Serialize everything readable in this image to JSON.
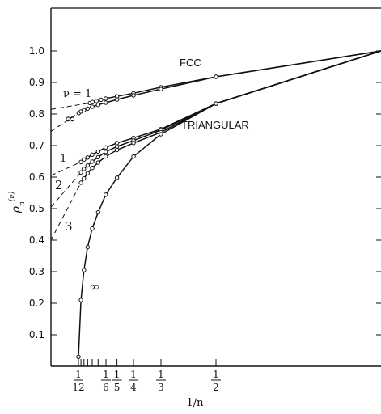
{
  "chart_data": {
    "type": "line",
    "xlabel": "1/n",
    "ylabel": "ρ_n^(ν)",
    "xlim": [
      0,
      1
    ],
    "ylim": [
      0,
      1.05
    ],
    "x_scale": "1/n (reciprocal of n)",
    "yticks": [
      "0.1",
      "0.2",
      "0.3",
      "0.4",
      "0.5",
      "0.6",
      "0.7",
      "0.8",
      "0.9",
      "1.0"
    ],
    "xtick_labels": [
      {
        "n": 12,
        "num": "1",
        "den": "12"
      },
      {
        "n": 6,
        "num": "1",
        "den": "6"
      },
      {
        "n": 5,
        "num": "1",
        "den": "5"
      },
      {
        "n": 4,
        "num": "1",
        "den": "4"
      },
      {
        "n": 3,
        "num": "1",
        "den": "3"
      },
      {
        "n": 2,
        "num": "1",
        "den": "2"
      }
    ],
    "minor_ticks_n": [
      11,
      10,
      9,
      8,
      7
    ],
    "annotations": {
      "fcc": "FCC",
      "triangular": "TRIANGULAR",
      "nu_eq_1": "ν = 1",
      "fcc_inf": "∞",
      "tri_1": "1",
      "tri_2": "2",
      "tri_3": "3",
      "tri_inf": "∞"
    },
    "series": [
      {
        "group": "FCC",
        "label": "ν = 1",
        "points": [
          [
            0.118,
            0.835
          ],
          [
            0.126,
            0.838
          ],
          [
            0.138,
            0.841
          ],
          [
            0.152,
            0.845
          ],
          [
            0.166,
            0.849
          ],
          [
            0.2,
            0.856
          ],
          [
            0.25,
            0.866
          ],
          [
            0.333,
            0.885
          ],
          [
            0.5,
            0.918
          ],
          [
            1,
            1.0
          ]
        ],
        "extrap": [
          [
            0,
            0.815
          ],
          [
            0.118,
            0.835
          ]
        ]
      },
      {
        "group": "FCC",
        "label": "∞",
        "points": [
          [
            0.084,
            0.803
          ],
          [
            0.091,
            0.808
          ],
          [
            0.1,
            0.812
          ],
          [
            0.111,
            0.817
          ],
          [
            0.125,
            0.823
          ],
          [
            0.143,
            0.829
          ],
          [
            0.166,
            0.836
          ],
          [
            0.2,
            0.846
          ],
          [
            0.25,
            0.859
          ],
          [
            0.333,
            0.879
          ],
          [
            0.5,
            0.918
          ],
          [
            1,
            1.0
          ]
        ],
        "extrap": [
          [
            0,
            0.745
          ],
          [
            0.084,
            0.803
          ]
        ]
      },
      {
        "group": "TRIANGULAR",
        "label": "1",
        "points": [
          [
            0.0909,
            0.648
          ],
          [
            0.1,
            0.655
          ],
          [
            0.111,
            0.662
          ],
          [
            0.125,
            0.671
          ],
          [
            0.143,
            0.681
          ],
          [
            0.166,
            0.694
          ],
          [
            0.2,
            0.708
          ],
          [
            0.25,
            0.724
          ],
          [
            0.333,
            0.752
          ],
          [
            0.5,
            0.833
          ],
          [
            1,
            1.0
          ]
        ],
        "extrap": [
          [
            0,
            0.605
          ],
          [
            0.0909,
            0.648
          ]
        ]
      },
      {
        "group": "TRIANGULAR",
        "label": "2",
        "points": [
          [
            0.0909,
            0.615
          ],
          [
            0.1,
            0.626
          ],
          [
            0.111,
            0.637
          ],
          [
            0.125,
            0.649
          ],
          [
            0.143,
            0.663
          ],
          [
            0.166,
            0.68
          ],
          [
            0.2,
            0.697
          ],
          [
            0.25,
            0.716
          ],
          [
            0.333,
            0.749
          ],
          [
            0.5,
            0.833
          ],
          [
            1,
            1.0
          ]
        ],
        "extrap": [
          [
            0,
            0.505
          ],
          [
            0.0909,
            0.615
          ]
        ]
      },
      {
        "group": "TRIANGULAR",
        "label": "3",
        "points": [
          [
            0.0909,
            0.582
          ],
          [
            0.1,
            0.596
          ],
          [
            0.111,
            0.612
          ],
          [
            0.125,
            0.629
          ],
          [
            0.143,
            0.646
          ],
          [
            0.166,
            0.665
          ],
          [
            0.2,
            0.686
          ],
          [
            0.25,
            0.708
          ],
          [
            0.333,
            0.742
          ],
          [
            0.5,
            0.833
          ],
          [
            1,
            1.0
          ]
        ],
        "extrap": [
          [
            0,
            0.4
          ],
          [
            0.0909,
            0.582
          ]
        ]
      },
      {
        "group": "TRIANGULAR",
        "label": "∞",
        "points": [
          [
            0.0833,
            0.03
          ],
          [
            0.0909,
            0.21
          ],
          [
            0.1,
            0.305
          ],
          [
            0.111,
            0.378
          ],
          [
            0.125,
            0.437
          ],
          [
            0.143,
            0.488
          ],
          [
            0.166,
            0.544
          ],
          [
            0.2,
            0.598
          ],
          [
            0.25,
            0.665
          ],
          [
            0.333,
            0.736
          ],
          [
            0.5,
            0.833
          ],
          [
            1,
            1.0
          ]
        ],
        "extrap": []
      }
    ]
  }
}
